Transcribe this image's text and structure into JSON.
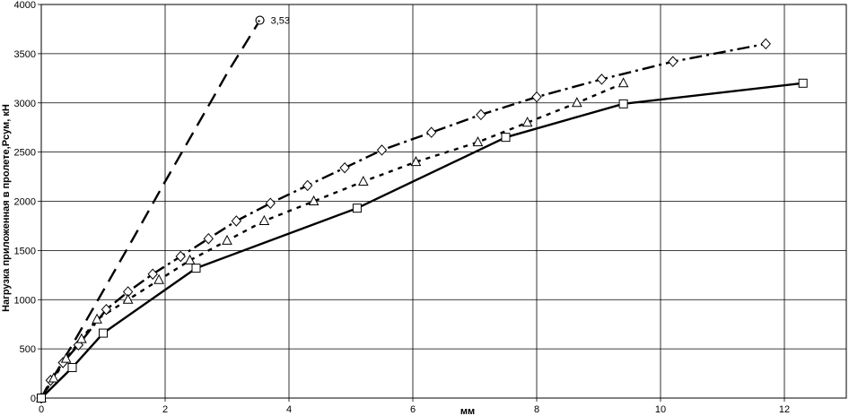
{
  "chart_data": {
    "type": "line",
    "title": "",
    "xlabel": "мм",
    "ylabel": "Нагрузка приложенная в пролете,Рсум, кН",
    "xlim": [
      0,
      13
    ],
    "ylim": [
      0,
      4000
    ],
    "x_ticks": [
      "0",
      "2",
      "4",
      "6",
      "8",
      "10",
      "12"
    ],
    "x_tick_values": [
      0,
      2,
      4,
      6,
      8,
      10,
      12
    ],
    "y_ticks": [
      "0",
      "500",
      "1000",
      "1500",
      "2000",
      "2500",
      "3000",
      "3500",
      "4000"
    ],
    "y_tick_values": [
      0,
      500,
      1000,
      1500,
      2000,
      2500,
      3000,
      3500,
      4000
    ],
    "grid": true,
    "series": [
      {
        "line_style": "long-dash",
        "marker": "none",
        "x": [
          0,
          0.5,
          1.0,
          1.5,
          2.0,
          2.5,
          3.0,
          3.53
        ],
        "y": [
          0,
          540,
          1090,
          1640,
          2200,
          2750,
          3300,
          3840
        ]
      },
      {
        "line_style": "dash-dot",
        "marker": "diamond",
        "x": [
          0,
          0.15,
          0.35,
          0.6,
          1.05,
          1.4,
          1.8,
          2.25,
          2.7,
          3.15,
          3.7,
          4.3,
          4.9,
          5.5,
          6.3,
          7.1,
          8.0,
          9.05,
          10.2,
          11.7
        ],
        "y": [
          0,
          180,
          360,
          540,
          900,
          1080,
          1260,
          1440,
          1620,
          1800,
          1980,
          2160,
          2340,
          2520,
          2700,
          2880,
          3060,
          3240,
          3420,
          3600
        ]
      },
      {
        "line_style": "dotted",
        "marker": "triangle",
        "x": [
          0,
          0.2,
          0.4,
          0.65,
          0.9,
          1.4,
          1.9,
          2.4,
          3.0,
          3.6,
          4.4,
          5.2,
          6.05,
          7.05,
          7.85,
          8.65,
          9.4
        ],
        "y": [
          0,
          200,
          400,
          600,
          800,
          1000,
          1200,
          1400,
          1600,
          1800,
          2000,
          2200,
          2400,
          2600,
          2800,
          3000,
          3200
        ]
      },
      {
        "line_style": "solid",
        "marker": "square",
        "x": [
          0,
          0.5,
          1.0,
          2.5,
          5.1,
          7.5,
          9.4,
          12.3
        ],
        "y": [
          0,
          310,
          660,
          1320,
          1930,
          2650,
          2990,
          3200
        ]
      }
    ],
    "annotations": [
      {
        "text": "3,53",
        "x": 3.53,
        "y": 3840,
        "marker": "circle"
      }
    ]
  }
}
